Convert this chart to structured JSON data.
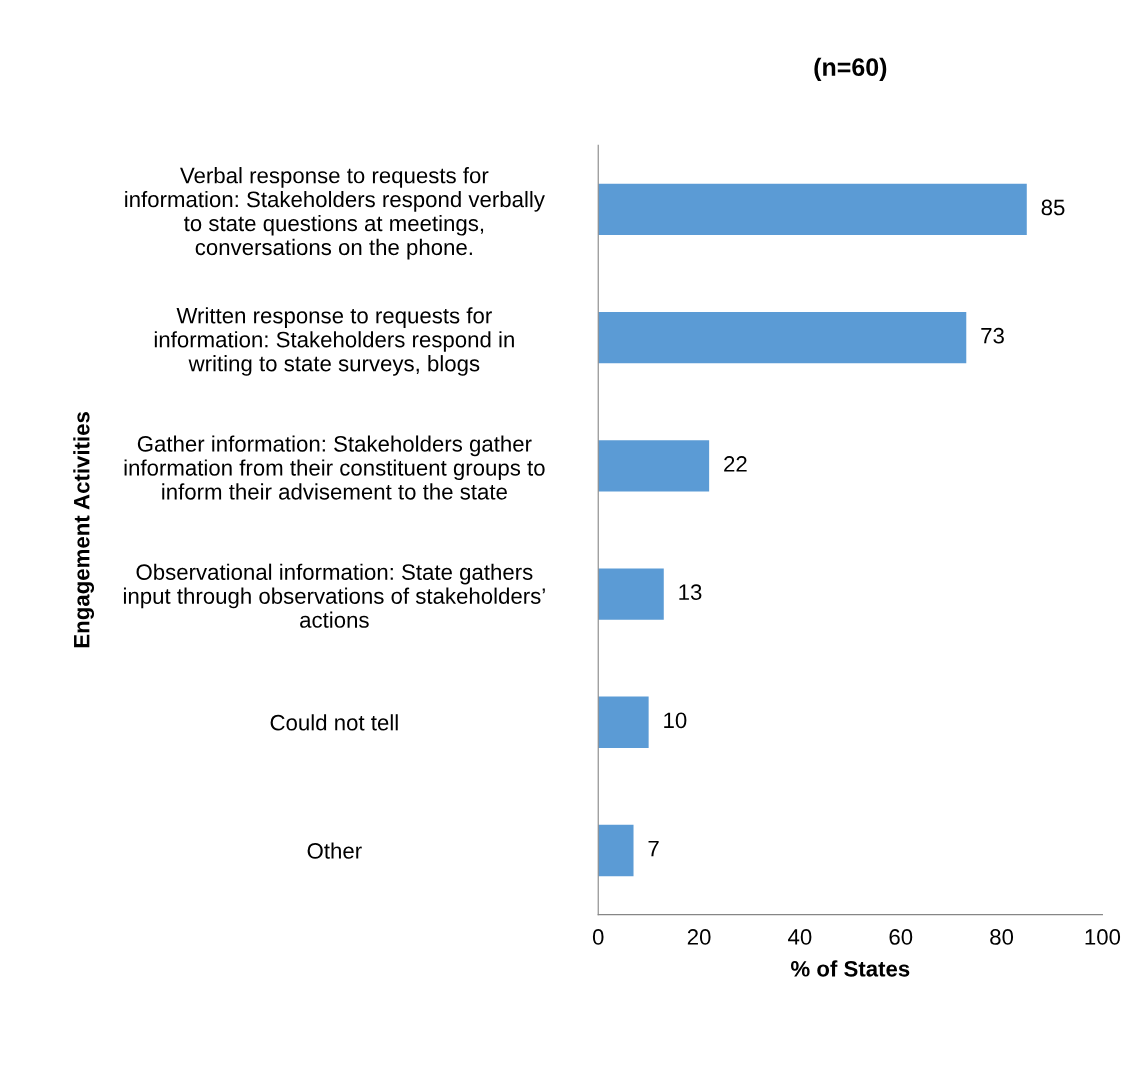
{
  "chart_data": {
    "type": "bar",
    "orientation": "horizontal",
    "title": "(n=60)",
    "xlabel": "% of States",
    "ylabel": "Engagement Activities",
    "categories": [
      "Verbal response to requests for\ninformation: Stakeholders respond verbally\nto state questions at meetings,\nconversations on the phone.",
      "Written response to requests for\ninformation: Stakeholders respond in\nwriting to state surveys, blogs",
      "Gather information: Stakeholders gather\ninformation from their constituent groups to\ninform their advisement to the state",
      "Observational information: State gathers\ninput through observations of stakeholders’\nactions",
      "Could not tell",
      "Other"
    ],
    "values": [
      85,
      73,
      22,
      13,
      10,
      7
    ],
    "color": "#5b9bd5",
    "xlim": [
      0,
      100
    ],
    "xticks": [
      0,
      20,
      40,
      60,
      80,
      100
    ],
    "data_labels": true,
    "grid": false,
    "legend": false
  }
}
